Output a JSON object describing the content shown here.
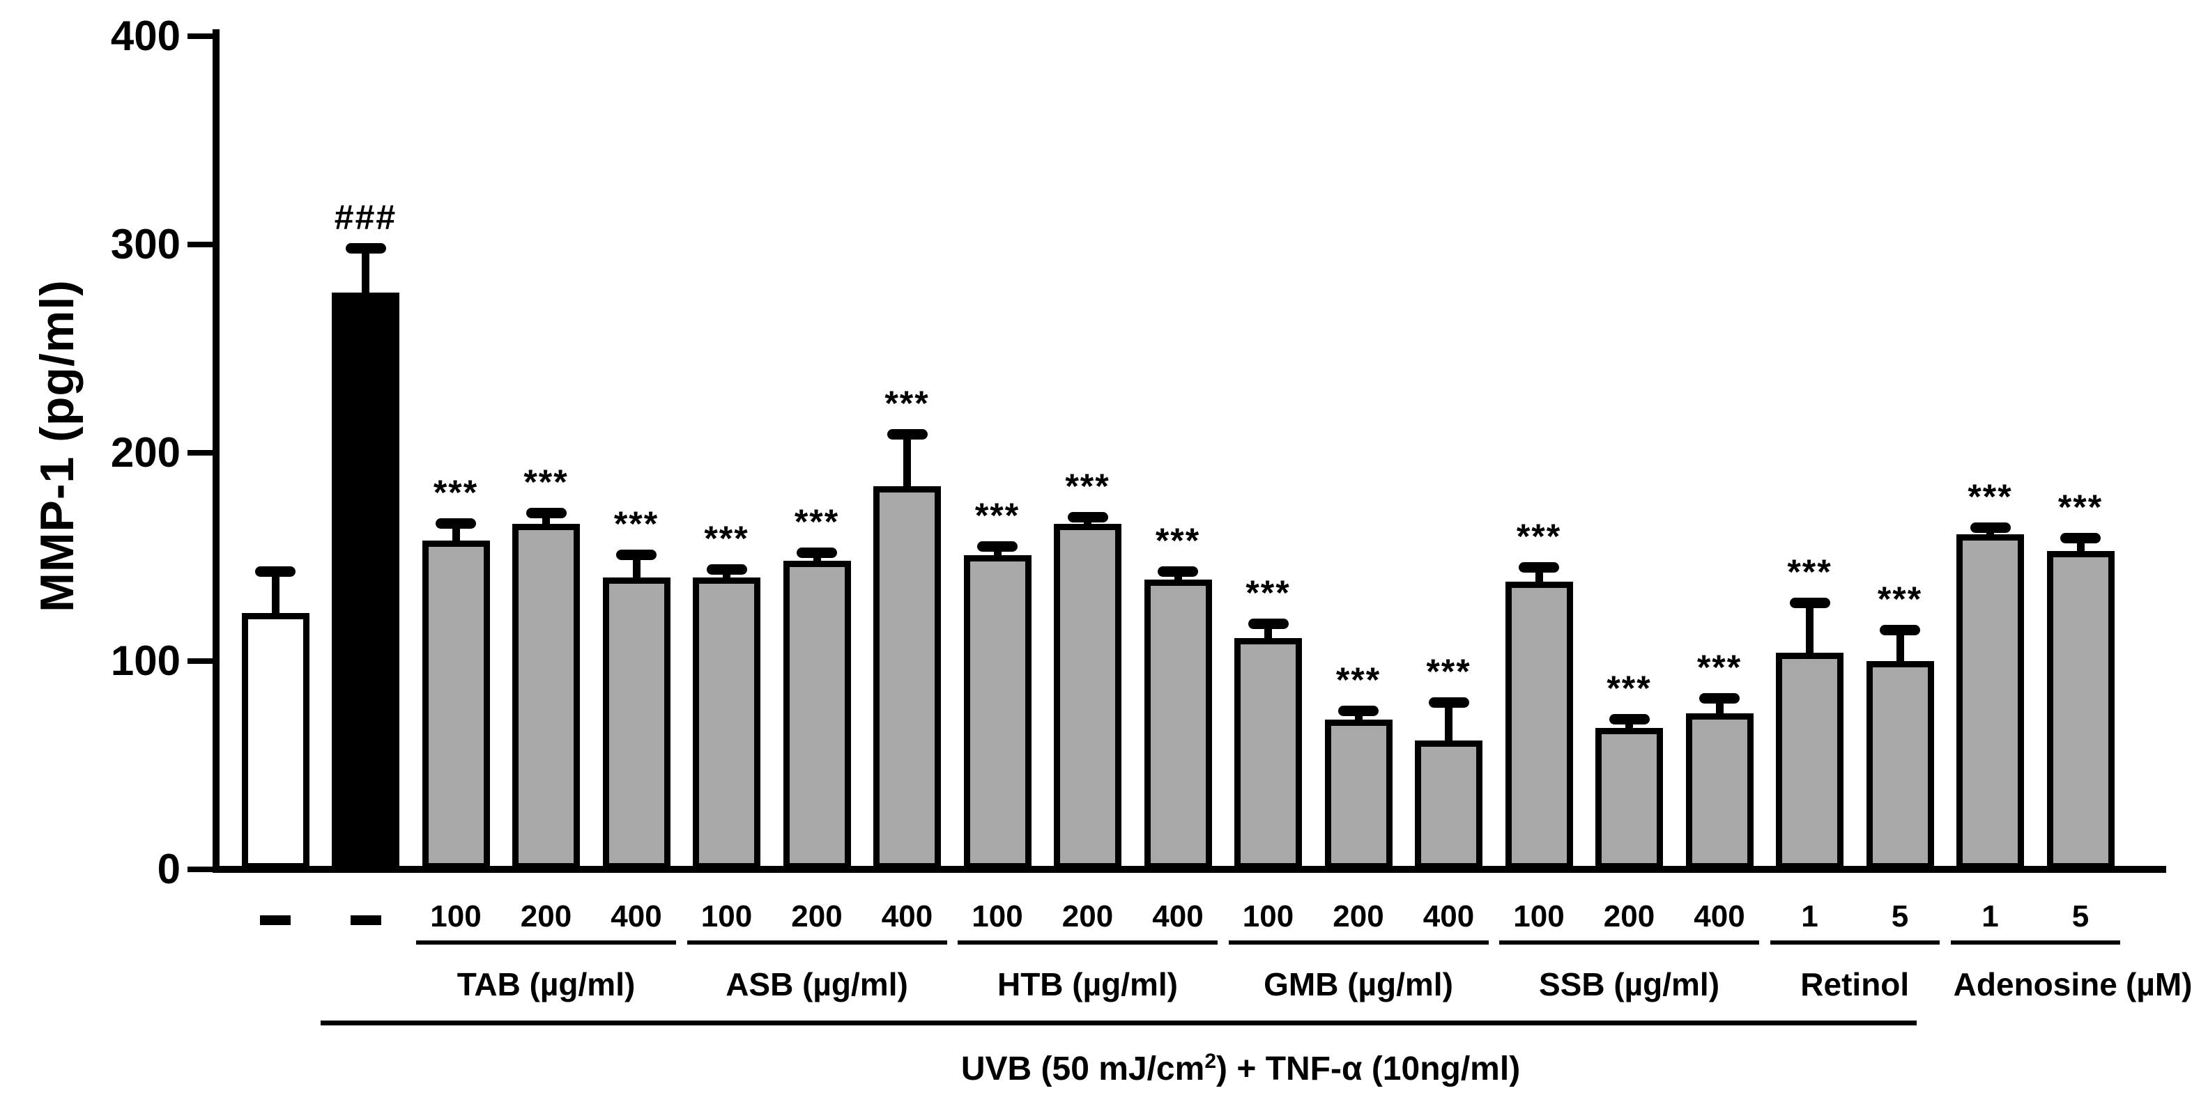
{
  "chart_data": {
    "type": "bar",
    "title": "",
    "xlabel": "",
    "ylabel": "MMP-1 (pg/ml)",
    "ylim": [
      0,
      400
    ],
    "yticks": [
      "0",
      "100",
      "200",
      "300",
      "400"
    ],
    "grid": false,
    "legend": null,
    "colors": {
      "bar_gray": "#a8a8a8",
      "bar_black": "#000000",
      "bar_white": "#ffffff",
      "axis": "#000000",
      "background": "#ffffff"
    },
    "groups": [
      {
        "key": "control",
        "label": "",
        "underline": false,
        "bars": [
          {
            "tick": "-",
            "value": 123,
            "err": 20,
            "fill": "white",
            "sig": ""
          }
        ]
      },
      {
        "key": "uvb-tnf",
        "label": "",
        "underline": false,
        "bars": [
          {
            "tick": "-",
            "value": 277,
            "err": 21,
            "fill": "black",
            "sig": "###"
          }
        ]
      },
      {
        "key": "TAB",
        "label": "TAB (µg/ml)",
        "underline": true,
        "bars": [
          {
            "tick": "100",
            "value": 158,
            "err": 8,
            "fill": "gray",
            "sig": "***"
          },
          {
            "tick": "200",
            "value": 166,
            "err": 5,
            "fill": "gray",
            "sig": "***"
          },
          {
            "tick": "400",
            "value": 140,
            "err": 11,
            "fill": "gray",
            "sig": "***"
          }
        ]
      },
      {
        "key": "ASB",
        "label": "ASB (µg/ml)",
        "underline": true,
        "bars": [
          {
            "tick": "100",
            "value": 140,
            "err": 4,
            "fill": "gray",
            "sig": "***"
          },
          {
            "tick": "200",
            "value": 148,
            "err": 4,
            "fill": "gray",
            "sig": "***"
          },
          {
            "tick": "400",
            "value": 184,
            "err": 25,
            "fill": "gray",
            "sig": "***"
          }
        ]
      },
      {
        "key": "HTB",
        "label": "HTB (µg/ml)",
        "underline": true,
        "bars": [
          {
            "tick": "100",
            "value": 151,
            "err": 4,
            "fill": "gray",
            "sig": "***"
          },
          {
            "tick": "200",
            "value": 166,
            "err": 3,
            "fill": "gray",
            "sig": "***"
          },
          {
            "tick": "400",
            "value": 139,
            "err": 4,
            "fill": "gray",
            "sig": "***"
          }
        ]
      },
      {
        "key": "GMB",
        "label": "GMB (µg/ml)",
        "underline": true,
        "bars": [
          {
            "tick": "100",
            "value": 111,
            "err": 7,
            "fill": "gray",
            "sig": "***"
          },
          {
            "tick": "200",
            "value": 72,
            "err": 4,
            "fill": "gray",
            "sig": "***"
          },
          {
            "tick": "400",
            "value": 62,
            "err": 18,
            "fill": "gray",
            "sig": "***"
          }
        ]
      },
      {
        "key": "SSB",
        "label": "SSB (µg/ml)",
        "underline": true,
        "bars": [
          {
            "tick": "100",
            "value": 138,
            "err": 7,
            "fill": "gray",
            "sig": "***"
          },
          {
            "tick": "200",
            "value": 68,
            "err": 4,
            "fill": "gray",
            "sig": "***"
          },
          {
            "tick": "400",
            "value": 75,
            "err": 7,
            "fill": "gray",
            "sig": "***"
          }
        ]
      },
      {
        "key": "Retinol",
        "label": "Retinol",
        "underline": true,
        "bars": [
          {
            "tick": "1",
            "value": 104,
            "err": 24,
            "fill": "gray",
            "sig": "***"
          },
          {
            "tick": "5",
            "value": 100,
            "err": 15,
            "fill": "gray",
            "sig": "***"
          }
        ]
      },
      {
        "key": "Adenosine",
        "label": "Adenosine",
        "label_suffix": "(µM)",
        "underline": true,
        "bars": [
          {
            "tick": "1",
            "value": 161,
            "err": 3,
            "fill": "gray",
            "sig": "***"
          },
          {
            "tick": "5",
            "value": 153,
            "err": 6,
            "fill": "gray",
            "sig": "***"
          }
        ]
      }
    ],
    "treatment_label": {
      "pre": "UVB (50 mJ/cm",
      "sup": "2",
      "post": ") + TNF-α (10ng/ml)"
    }
  }
}
